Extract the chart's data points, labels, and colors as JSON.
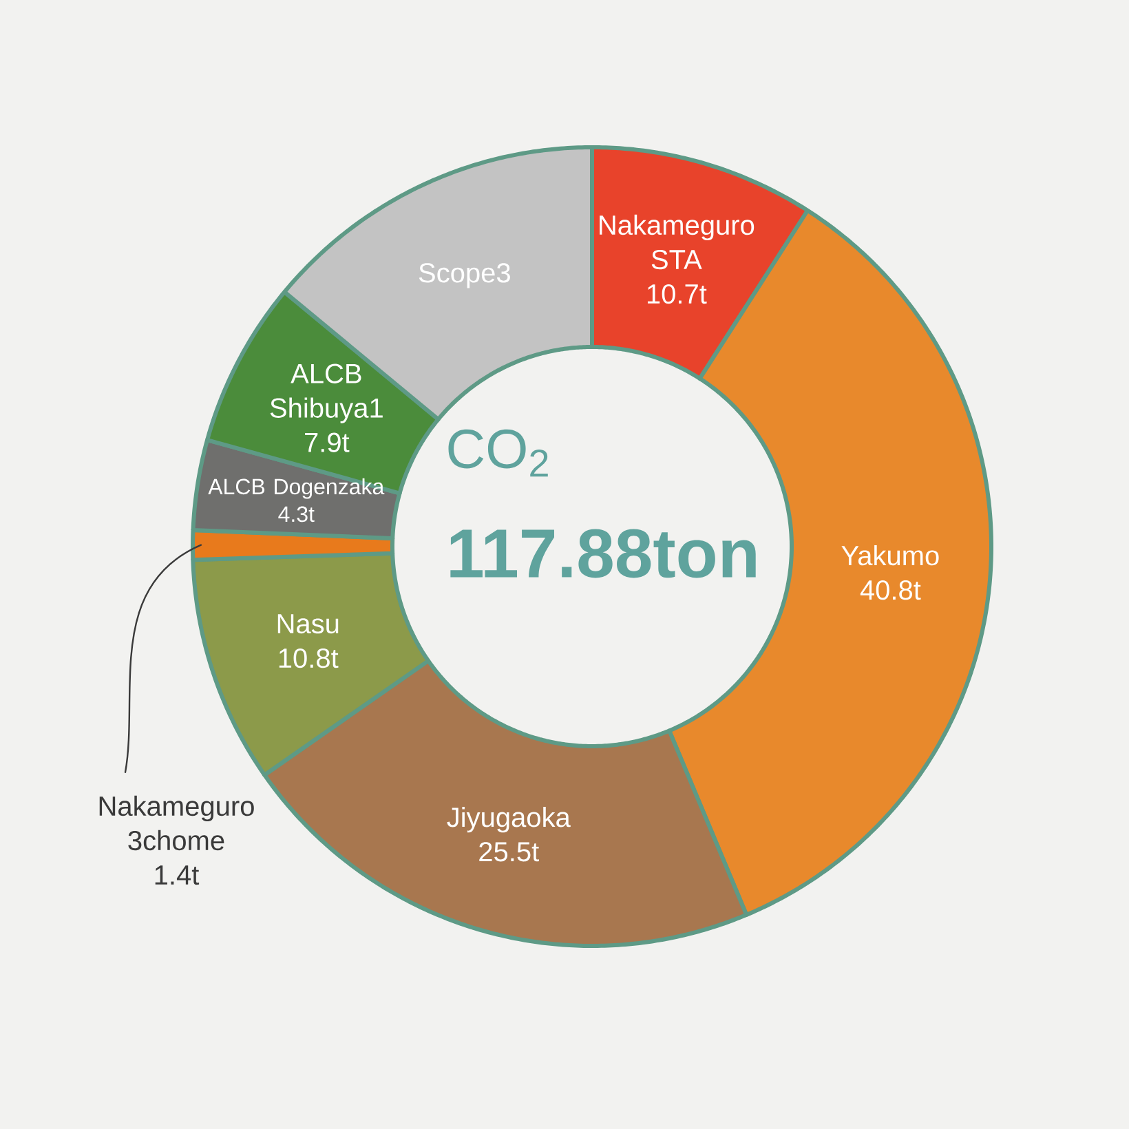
{
  "chart_data": {
    "type": "donut",
    "title": "CO$_{2}$",
    "subtitle": "117.88ton",
    "categories": [
      "Nakameguro STA",
      "Yakumo",
      "Jiyugaoka",
      "Nasu",
      "Nakameguro 3chome",
      "ALCB Dogenzaka",
      "ALCB Shibuya1",
      "Scope3"
    ],
    "values": [
      10.7,
      40.8,
      25.5,
      10.8,
      1.4,
      4.3,
      7.9,
      16.5
    ],
    "value_labels": [
      "10.7t",
      "40.8t",
      "25.5t",
      "10.8t",
      "1.4t",
      "4.3t",
      "7.9t",
      null
    ],
    "colors": [
      "#e8432b",
      "#e8892c",
      "#a8774f",
      "#8c9a4a",
      "#e87a1c",
      "#6f6f6d",
      "#4b8c3b",
      "#c3c3c3"
    ]
  }
}
